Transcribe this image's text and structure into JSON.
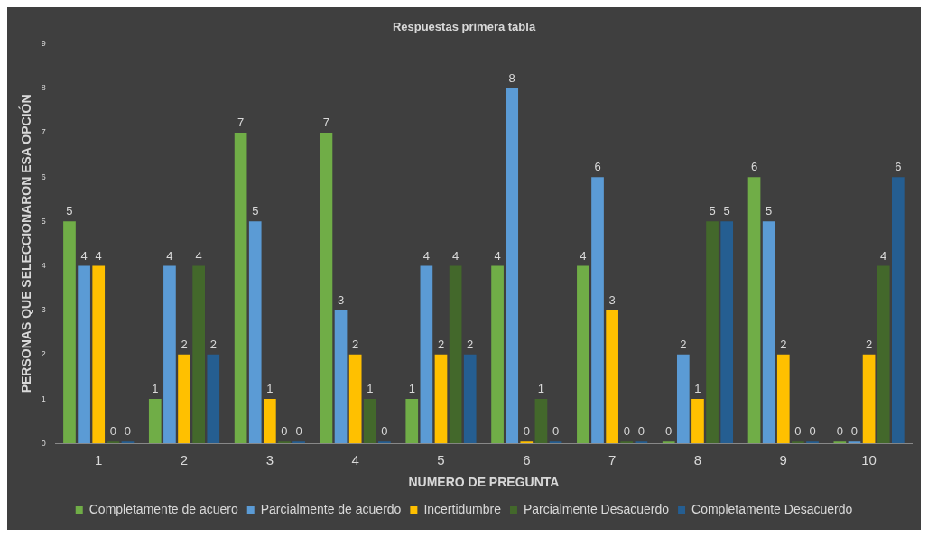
{
  "chart_data": {
    "type": "bar",
    "title": "Respuestas primera tabla",
    "xlabel": "NUMERO DE PREGUNTA",
    "ylabel": "PERSONAS QUE SELECCIONARON ESA OPCIÓN",
    "categories": [
      "1",
      "2",
      "3",
      "4",
      "5",
      "6",
      "7",
      "8",
      "9",
      "10"
    ],
    "series": [
      {
        "name": "Completamente de acuero",
        "color": "#70ad47",
        "values": [
          5,
          1,
          7,
          7,
          1,
          4,
          4,
          0,
          6,
          0
        ]
      },
      {
        "name": "Parcialmente de acuerdo",
        "color": "#5b9bd5",
        "values": [
          4,
          4,
          5,
          3,
          4,
          8,
          6,
          2,
          5,
          0
        ]
      },
      {
        "name": "Incertidumbre",
        "color": "#ffc000",
        "values": [
          4,
          2,
          1,
          2,
          2,
          0,
          3,
          1,
          2,
          2
        ]
      },
      {
        "name": "Parcialmente Desacuerdo",
        "color": "#43682b",
        "values": [
          0,
          4,
          0,
          1,
          4,
          1,
          0,
          5,
          0,
          4
        ]
      },
      {
        "name": "Completamente Desacuerdo",
        "color": "#255e91",
        "values": [
          0,
          2,
          0,
          0,
          2,
          0,
          0,
          5,
          0,
          6
        ]
      }
    ],
    "ylim": [
      0,
      9
    ],
    "yticks": [
      0,
      1,
      2,
      3,
      4,
      5,
      6,
      7,
      8,
      9
    ],
    "grid": false,
    "legend": "bottom",
    "data_labels": true
  }
}
